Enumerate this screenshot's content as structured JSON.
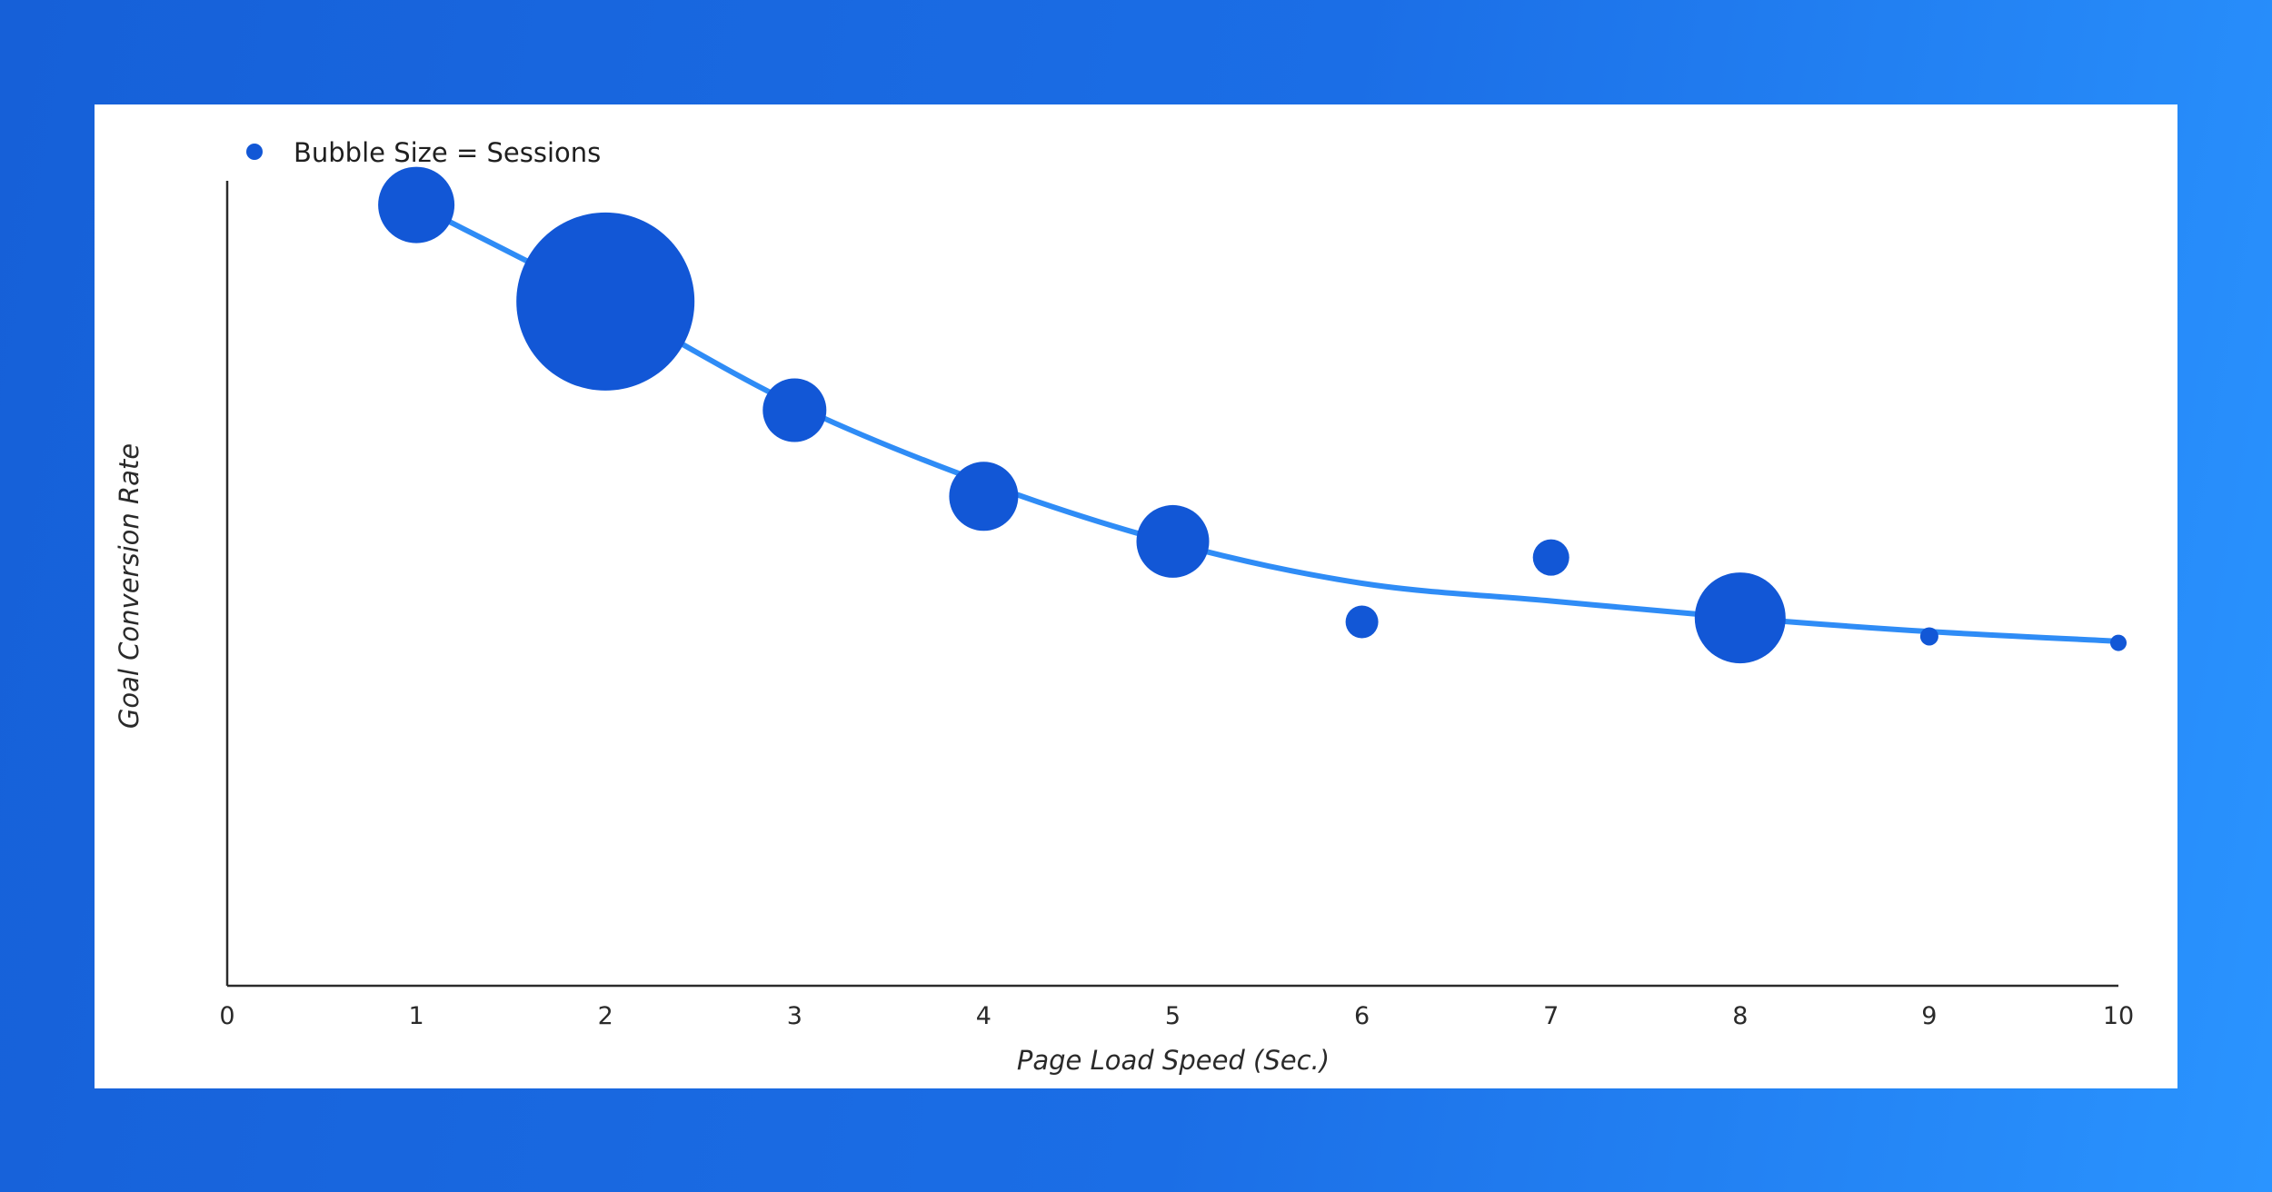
{
  "chart_data": {
    "type": "scatter",
    "legend": {
      "label": "Bubble Size = Sessions",
      "marker_color": "#1257d6",
      "position": "top-left"
    },
    "xlabel": "Page Load Speed (Sec.)",
    "ylabel": "Goal Conversion Rate",
    "xlim": [
      0,
      10
    ],
    "xticks": [
      0,
      1,
      2,
      3,
      4,
      5,
      6,
      7,
      8,
      9,
      10
    ],
    "y_ticks_shown": false,
    "grid": false,
    "bubble_color": "#1257d6",
    "trend_color": "#2f8cf6",
    "points": [
      {
        "x": 1,
        "y": 0.97,
        "size": 42
      },
      {
        "x": 2,
        "y": 0.85,
        "size": 98
      },
      {
        "x": 3,
        "y": 0.715,
        "size": 35
      },
      {
        "x": 4,
        "y": 0.608,
        "size": 38
      },
      {
        "x": 5,
        "y": 0.552,
        "size": 40
      },
      {
        "x": 6,
        "y": 0.452,
        "size": 18
      },
      {
        "x": 7,
        "y": 0.532,
        "size": 20
      },
      {
        "x": 8,
        "y": 0.457,
        "size": 50
      },
      {
        "x": 9,
        "y": 0.434,
        "size": 10
      },
      {
        "x": 10,
        "y": 0.426,
        "size": 9
      }
    ],
    "trend": [
      {
        "x": 1,
        "y": 0.97
      },
      {
        "x": 2,
        "y": 0.85
      },
      {
        "x": 3,
        "y": 0.722
      },
      {
        "x": 4,
        "y": 0.625
      },
      {
        "x": 5,
        "y": 0.55
      },
      {
        "x": 6,
        "y": 0.5
      },
      {
        "x": 7,
        "y": 0.478
      },
      {
        "x": 8,
        "y": 0.457
      },
      {
        "x": 9,
        "y": 0.44
      },
      {
        "x": 10,
        "y": 0.428
      }
    ]
  }
}
